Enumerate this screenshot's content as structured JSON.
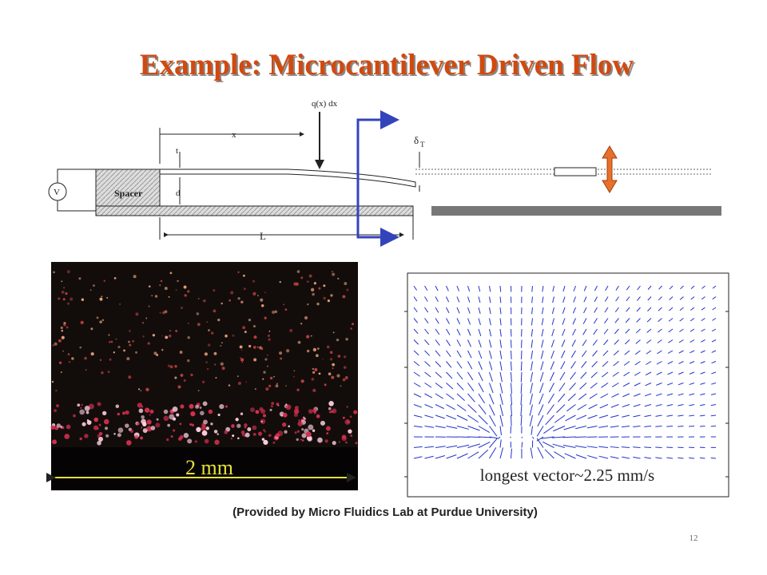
{
  "title": "Example: Microcantilever Driven Flow",
  "diagram": {
    "labels": {
      "load": "q(x) dx",
      "x": "x",
      "t": "t",
      "d": "d",
      "length": "L",
      "spacer": "Spacer",
      "voltage": "V",
      "deflection_symbol": "δ",
      "deflection_subscript": "T"
    }
  },
  "photo": {
    "scale_label": "2 mm"
  },
  "vector_plot": {
    "annotation": "longest vector~2.25 mm/s"
  },
  "caption": "(Provided by Micro Fluidics Lab at Purdue University)",
  "page_number": "12"
}
